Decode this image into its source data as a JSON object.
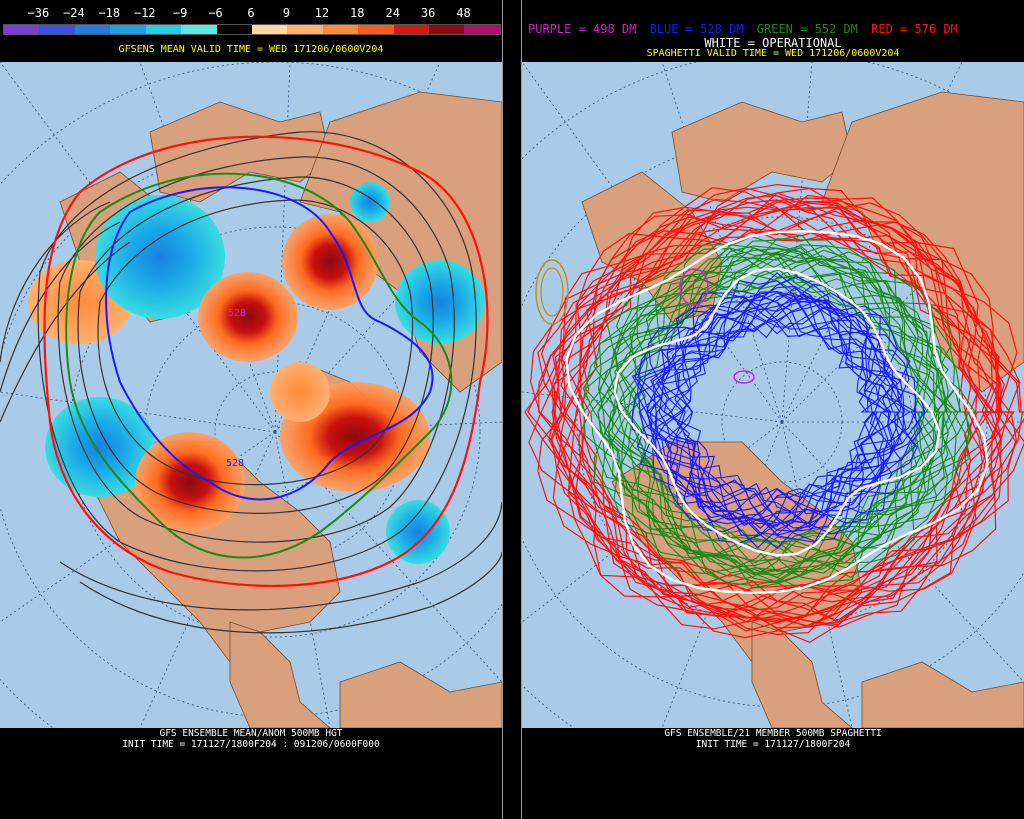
{
  "left": {
    "colorbar": {
      "labels": [
        "−36",
        "−24",
        "−18",
        "−12",
        "−9",
        "−6",
        "6",
        "9",
        "12",
        "18",
        "24",
        "36",
        "48"
      ],
      "colors": [
        "#7a3ed6",
        "#3a50e0",
        "#1f7fe0",
        "#1aa4e8",
        "#26cde8",
        "#5ee6e0",
        "#000000",
        "#ffd7a0",
        "#ffb070",
        "#ff8a3a",
        "#ff5a1a",
        "#d61a10",
        "#8a0a10",
        "#b0106a"
      ]
    },
    "title": "GFSENS MEAN VALID TIME = WED 171206/0600V204",
    "contour_labels": [
      "528",
      "528"
    ],
    "footer_line1": "GFS ENSEMBLE MEAN/ANOM 500MB HGT",
    "footer_line2": "INIT TIME = 171127/1800F204 : 091206/0600F000"
  },
  "right": {
    "legend": {
      "purple": "PURPLE = 498 DM",
      "blue": "BLUE = 528 DM",
      "green": "GREEN = 552 DM",
      "red": "RED = 576 DM",
      "white": "WHITE = OPERATIONAL"
    },
    "title": "SPAGHETTI VALID TIME = WED 171206/0600V204",
    "footer_line1": "GFS ENSEMBLE/21 MEMBER 500MB SPAGHETTI",
    "footer_line2": "INIT TIME = 171127/1800F204"
  },
  "colors": {
    "ocean": "#a9cbe8",
    "land": "#d8a07c",
    "purple": "#d020d0",
    "blue": "#1a1aff",
    "green": "#1a8a1a",
    "red": "#ff1010",
    "white": "#ffffff",
    "title_yellow": "#ffff00"
  }
}
